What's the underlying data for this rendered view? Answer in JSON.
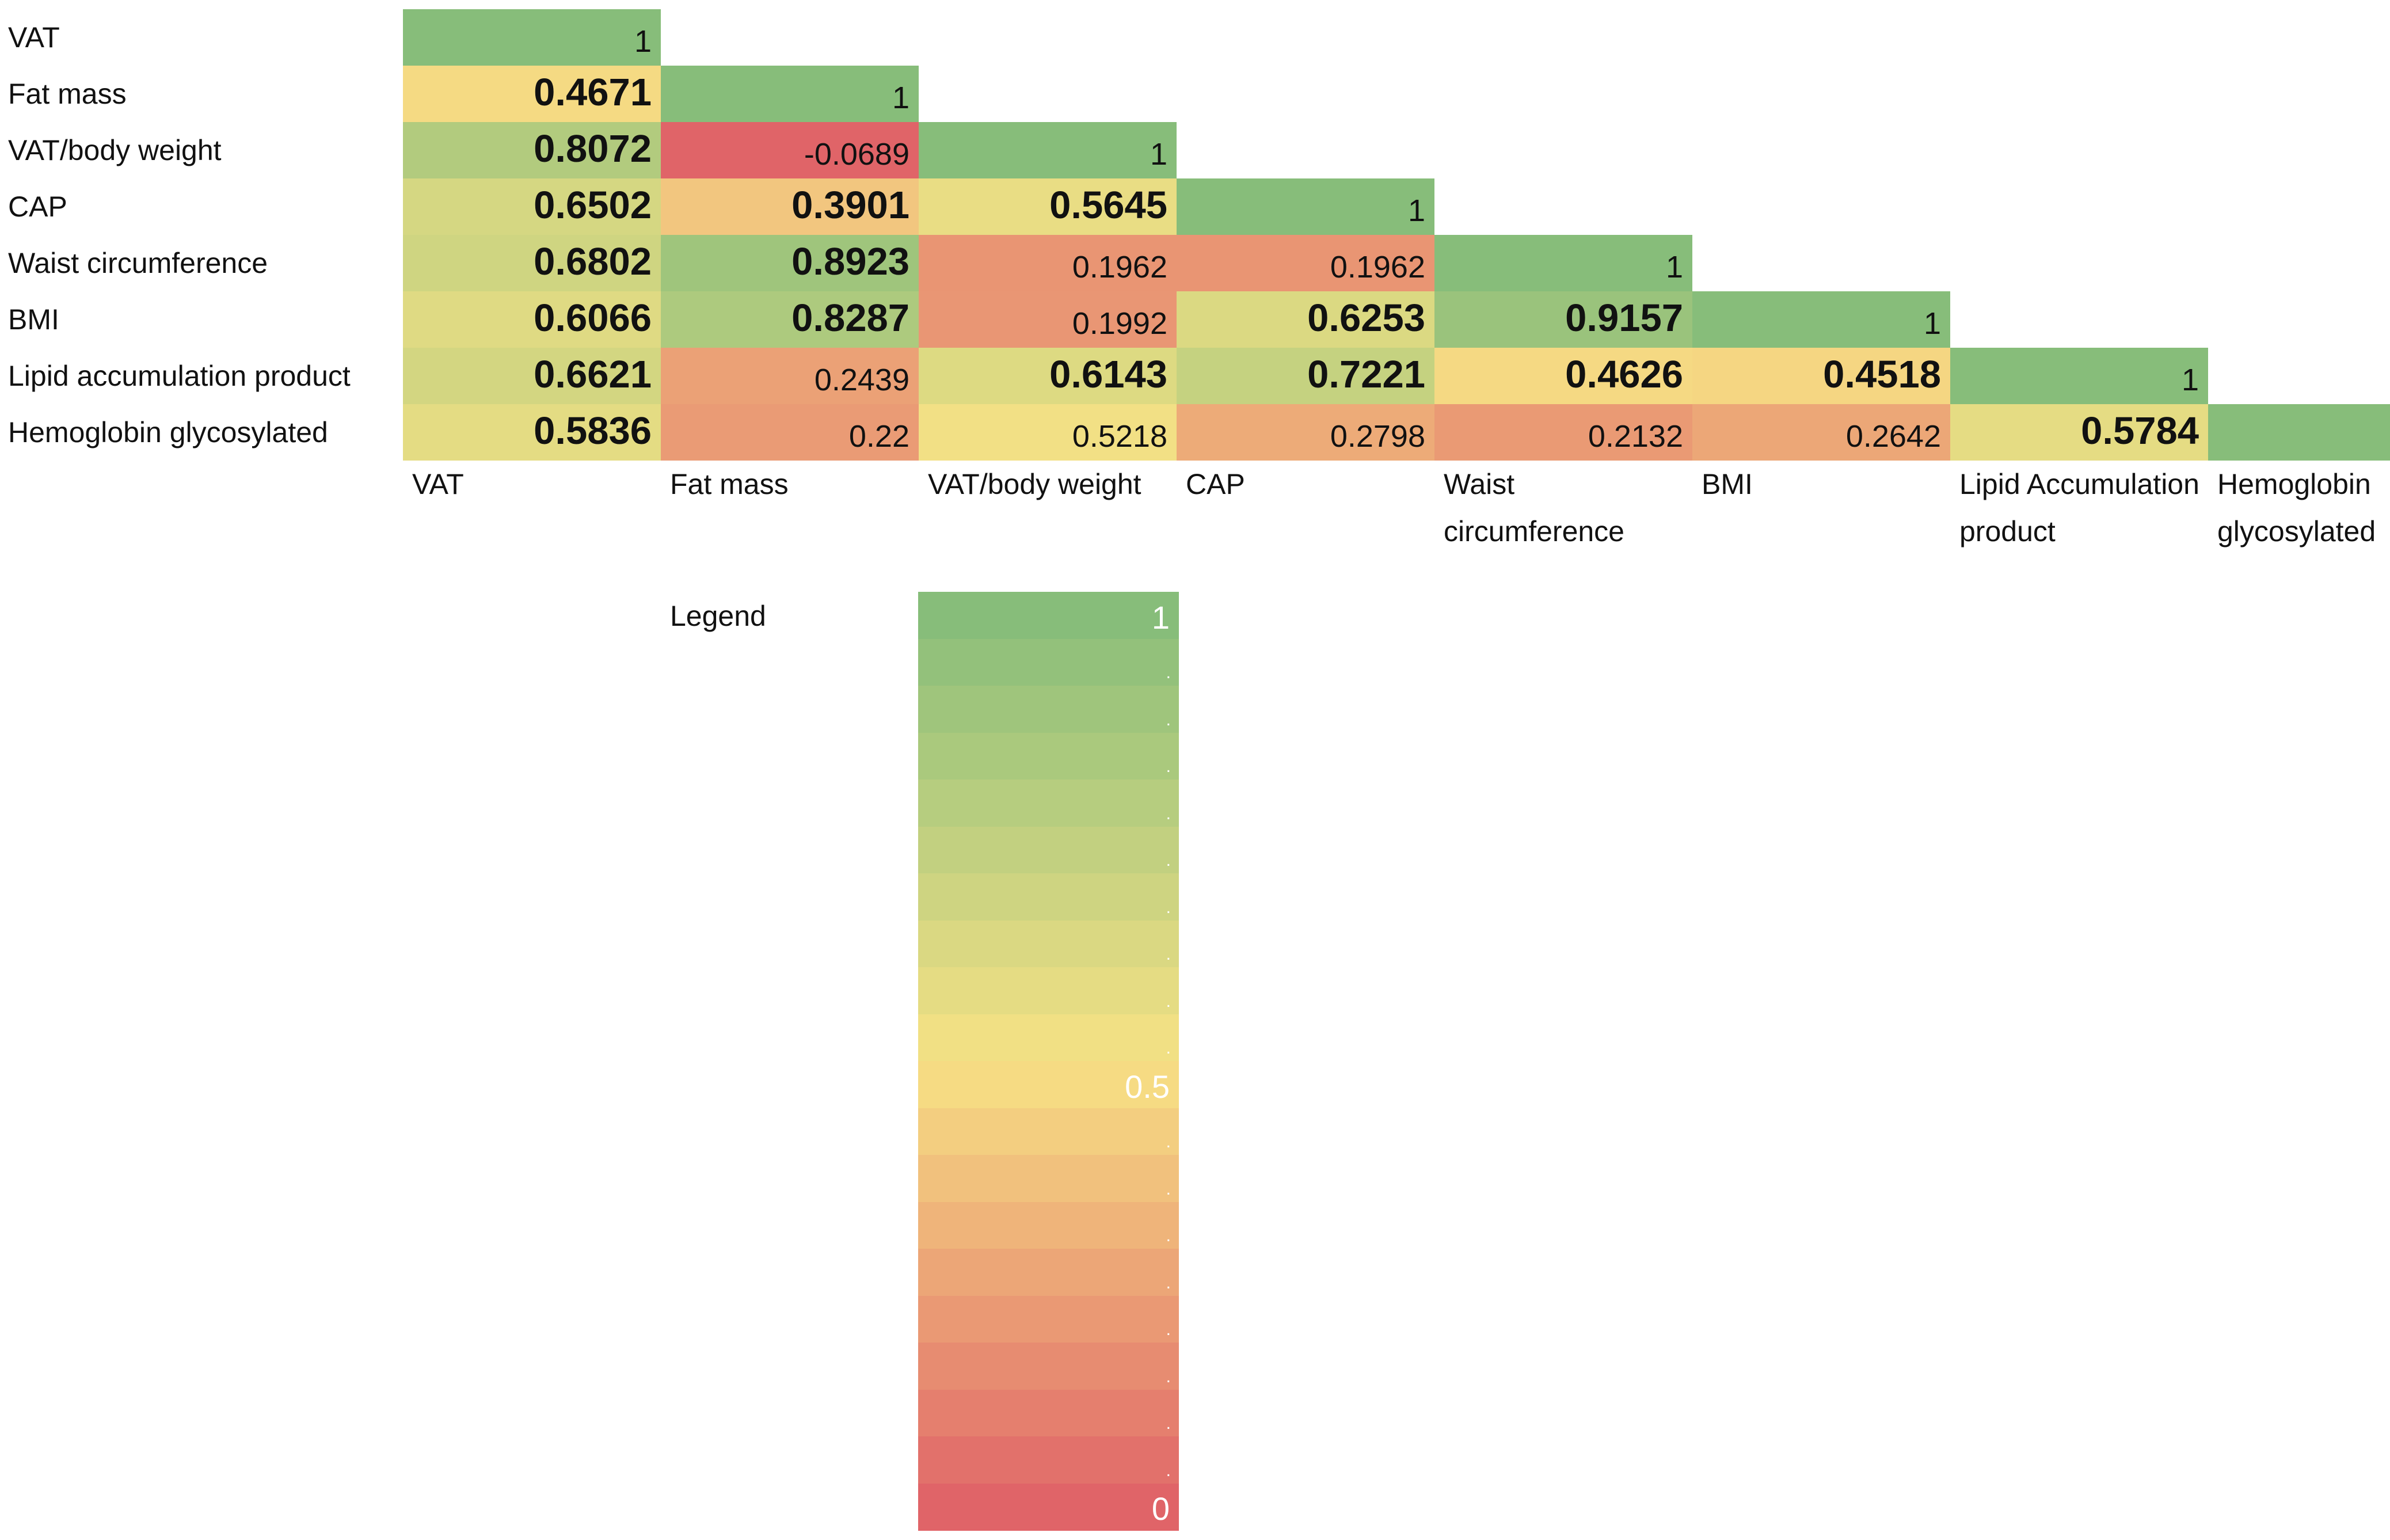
{
  "chart_data": {
    "type": "heatmap",
    "title": "",
    "row_labels": [
      "VAT",
      "Fat mass",
      "VAT/body weight",
      "CAP",
      "Waist circumference",
      "BMI",
      "Lipid accumulation product",
      "Hemoglobin glycosylated"
    ],
    "column_labels": [
      "VAT",
      "Fat mass",
      "VAT/body weight",
      "CAP",
      "Waist\ncircumference",
      "BMI",
      "Lipid Accumulation\nproduct",
      "Hemoglobin\nglycosylated"
    ],
    "values": [
      [
        "1"
      ],
      [
        "0.4671",
        "1"
      ],
      [
        "0.8072",
        "-0.0689",
        "1"
      ],
      [
        "0.6502",
        "0.3901",
        "0.5645",
        "1"
      ],
      [
        "0.6802",
        "0.8923",
        "0.1962",
        "0.1962",
        "1"
      ],
      [
        "0.6066",
        "0.8287",
        "0.1992",
        "0.6253",
        "0.9157",
        "1"
      ],
      [
        "0.6621",
        "0.2439",
        "0.6143",
        "0.7221",
        "0.4626",
        "0.4518",
        "1"
      ],
      [
        "0.5836",
        "0.22",
        "0.5218",
        "0.2798",
        "0.2132",
        "0.2642",
        "0.5784",
        "1"
      ]
    ],
    "bold": [
      [
        false
      ],
      [
        true,
        false
      ],
      [
        true,
        false,
        false
      ],
      [
        true,
        true,
        true,
        false
      ],
      [
        true,
        true,
        false,
        false,
        false
      ],
      [
        true,
        true,
        false,
        true,
        true,
        false
      ],
      [
        true,
        false,
        true,
        true,
        true,
        true,
        false
      ],
      [
        true,
        false,
        false,
        false,
        false,
        false,
        true,
        false
      ]
    ],
    "color_scale": {
      "min": 0,
      "mid": 0.5,
      "max": 1,
      "color_min": "#e06468",
      "color_mid": "#f7e285",
      "color_max": "#87bd7a"
    },
    "legend": {
      "title": "Legend",
      "tick_labels": [
        "1",
        "0.5",
        "0"
      ],
      "steps": 20
    }
  }
}
